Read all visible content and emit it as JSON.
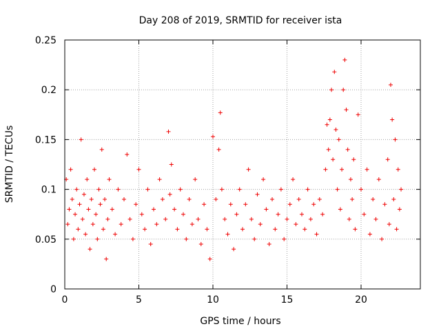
{
  "chart_data": {
    "type": "scatter",
    "title": "Day 208 of 2019, SRMTID for receiver ista",
    "xlabel": "GPS time / hours",
    "ylabel": "SRMTID / TECUs",
    "xlim": [
      0,
      24
    ],
    "ylim": [
      0,
      0.25
    ],
    "xticks": [
      "0",
      "5",
      "10",
      "15",
      "20"
    ],
    "yticks": [
      "0",
      "0.05",
      "0.1",
      "0.15",
      "0.2",
      "0.25"
    ],
    "grid": true,
    "marker": "+",
    "color": "#ee0000",
    "points": [
      [
        0.1,
        0.11
      ],
      [
        0.2,
        0.065
      ],
      [
        0.3,
        0.08
      ],
      [
        0.4,
        0.12
      ],
      [
        0.5,
        0.09
      ],
      [
        0.6,
        0.05
      ],
      [
        0.7,
        0.075
      ],
      [
        0.8,
        0.1
      ],
      [
        0.9,
        0.06
      ],
      [
        1.0,
        0.085
      ],
      [
        1.1,
        0.15
      ],
      [
        1.2,
        0.07
      ],
      [
        1.3,
        0.095
      ],
      [
        1.4,
        0.055
      ],
      [
        1.5,
        0.11
      ],
      [
        1.6,
        0.08
      ],
      [
        1.7,
        0.04
      ],
      [
        1.8,
        0.09
      ],
      [
        1.9,
        0.065
      ],
      [
        2.0,
        0.12
      ],
      [
        2.1,
        0.075
      ],
      [
        2.2,
        0.05
      ],
      [
        2.3,
        0.1
      ],
      [
        2.4,
        0.085
      ],
      [
        2.5,
        0.14
      ],
      [
        2.6,
        0.06
      ],
      [
        2.7,
        0.09
      ],
      [
        2.8,
        0.03
      ],
      [
        2.9,
        0.07
      ],
      [
        3.0,
        0.11
      ],
      [
        3.2,
        0.08
      ],
      [
        3.4,
        0.055
      ],
      [
        3.6,
        0.1
      ],
      [
        3.8,
        0.065
      ],
      [
        4.0,
        0.09
      ],
      [
        4.2,
        0.135
      ],
      [
        4.4,
        0.07
      ],
      [
        4.6,
        0.05
      ],
      [
        4.8,
        0.085
      ],
      [
        5.0,
        0.12
      ],
      [
        5.2,
        0.075
      ],
      [
        5.4,
        0.06
      ],
      [
        5.6,
        0.1
      ],
      [
        5.8,
        0.045
      ],
      [
        6.0,
        0.08
      ],
      [
        6.2,
        0.065
      ],
      [
        6.4,
        0.11
      ],
      [
        6.6,
        0.09
      ],
      [
        6.8,
        0.07
      ],
      [
        7.0,
        0.158
      ],
      [
        7.1,
        0.095
      ],
      [
        7.2,
        0.125
      ],
      [
        7.4,
        0.08
      ],
      [
        7.6,
        0.06
      ],
      [
        7.8,
        0.1
      ],
      [
        8.0,
        0.075
      ],
      [
        8.2,
        0.05
      ],
      [
        8.4,
        0.09
      ],
      [
        8.6,
        0.065
      ],
      [
        8.8,
        0.11
      ],
      [
        9.0,
        0.07
      ],
      [
        9.2,
        0.045
      ],
      [
        9.4,
        0.085
      ],
      [
        9.6,
        0.06
      ],
      [
        9.8,
        0.03
      ],
      [
        10.0,
        0.153
      ],
      [
        10.2,
        0.09
      ],
      [
        10.4,
        0.14
      ],
      [
        10.5,
        0.177
      ],
      [
        10.6,
        0.1
      ],
      [
        10.8,
        0.07
      ],
      [
        11.0,
        0.055
      ],
      [
        11.2,
        0.085
      ],
      [
        11.4,
        0.04
      ],
      [
        11.6,
        0.075
      ],
      [
        11.8,
        0.1
      ],
      [
        12.0,
        0.06
      ],
      [
        12.2,
        0.085
      ],
      [
        12.4,
        0.12
      ],
      [
        12.6,
        0.07
      ],
      [
        12.8,
        0.05
      ],
      [
        13.0,
        0.095
      ],
      [
        13.2,
        0.065
      ],
      [
        13.4,
        0.11
      ],
      [
        13.6,
        0.08
      ],
      [
        13.8,
        0.045
      ],
      [
        14.0,
        0.09
      ],
      [
        14.2,
        0.06
      ],
      [
        14.4,
        0.075
      ],
      [
        14.6,
        0.1
      ],
      [
        14.8,
        0.05
      ],
      [
        15.0,
        0.07
      ],
      [
        15.2,
        0.085
      ],
      [
        15.4,
        0.11
      ],
      [
        15.6,
        0.065
      ],
      [
        15.8,
        0.09
      ],
      [
        16.0,
        0.075
      ],
      [
        16.2,
        0.06
      ],
      [
        16.4,
        0.1
      ],
      [
        16.6,
        0.07
      ],
      [
        16.8,
        0.085
      ],
      [
        17.0,
        0.055
      ],
      [
        17.2,
        0.09
      ],
      [
        17.4,
        0.075
      ],
      [
        17.6,
        0.12
      ],
      [
        17.7,
        0.165
      ],
      [
        17.8,
        0.14
      ],
      [
        17.9,
        0.17
      ],
      [
        18.0,
        0.2
      ],
      [
        18.1,
        0.13
      ],
      [
        18.2,
        0.218
      ],
      [
        18.3,
        0.16
      ],
      [
        18.4,
        0.1
      ],
      [
        18.5,
        0.15
      ],
      [
        18.6,
        0.08
      ],
      [
        18.7,
        0.12
      ],
      [
        18.8,
        0.2
      ],
      [
        18.9,
        0.23
      ],
      [
        19.0,
        0.18
      ],
      [
        19.1,
        0.14
      ],
      [
        19.2,
        0.07
      ],
      [
        19.3,
        0.11
      ],
      [
        19.4,
        0.09
      ],
      [
        19.5,
        0.13
      ],
      [
        19.6,
        0.06
      ],
      [
        19.8,
        0.175
      ],
      [
        20.0,
        0.1
      ],
      [
        20.2,
        0.075
      ],
      [
        20.4,
        0.12
      ],
      [
        20.6,
        0.055
      ],
      [
        20.8,
        0.09
      ],
      [
        21.0,
        0.07
      ],
      [
        21.2,
        0.11
      ],
      [
        21.4,
        0.05
      ],
      [
        21.6,
        0.085
      ],
      [
        21.8,
        0.13
      ],
      [
        21.9,
        0.065
      ],
      [
        22.0,
        0.205
      ],
      [
        22.1,
        0.17
      ],
      [
        22.2,
        0.09
      ],
      [
        22.3,
        0.15
      ],
      [
        22.4,
        0.06
      ],
      [
        22.5,
        0.12
      ],
      [
        22.6,
        0.08
      ],
      [
        22.7,
        0.1
      ]
    ]
  }
}
